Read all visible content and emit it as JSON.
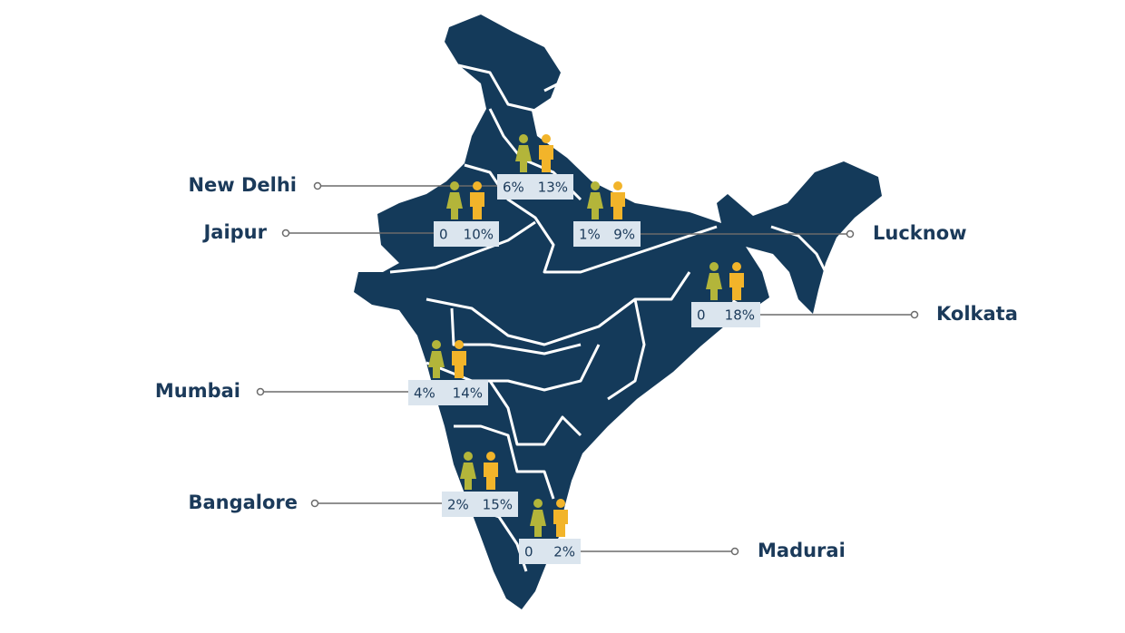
{
  "cities": [
    {
      "name": "New Delhi",
      "female": "6%",
      "male": "13%"
    },
    {
      "name": "Jaipur",
      "female": "0",
      "male": "10%"
    },
    {
      "name": "Lucknow",
      "female": "1%",
      "male": "9%"
    },
    {
      "name": "Kolkata",
      "female": "0",
      "male": "18%"
    },
    {
      "name": "Mumbai",
      "female": "4%",
      "male": "14%"
    },
    {
      "name": "Bangalore",
      "female": "2%",
      "male": "15%"
    },
    {
      "name": "Madurai",
      "female": "0",
      "male": "2%"
    }
  ]
}
